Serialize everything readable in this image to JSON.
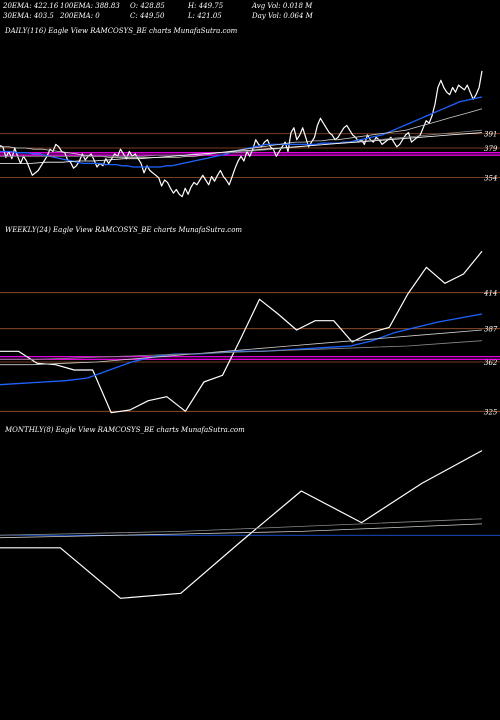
{
  "header": {
    "row1": [
      {
        "label": "20EMA: 422.16"
      },
      {
        "label": "100EMA: 388.83"
      },
      {
        "label": "O: 428.85"
      },
      {
        "label": "H: 449.75"
      },
      {
        "label": "Avg Vol: 0.018  M"
      }
    ],
    "row2": [
      {
        "label": "30EMA: 403.5"
      },
      {
        "label": "200EMA: 0"
      },
      {
        "label": "C: 449.50"
      },
      {
        "label": "L: 421.05"
      },
      {
        "label": "Day Vol: 0.064  M"
      }
    ]
  },
  "chart_data": [
    {
      "type": "line",
      "title": "DAILY(116) Eagle   View  RAMCOSYS_BE charts MunafaSutra.com",
      "ylim": [
        320,
        470
      ],
      "hlines": [
        {
          "value": 391,
          "label": "391",
          "color": "#a0522d"
        },
        {
          "value": 379,
          "label": "379",
          "color": "#a0522d"
        },
        {
          "value": 354,
          "label": "354",
          "color": "#a0522d"
        },
        {
          "value": 375,
          "label": "",
          "color": "#ff00ff"
        },
        {
          "value": 373,
          "label": "",
          "color": "#ff00ff"
        }
      ],
      "series": [
        {
          "color": "#ffffff",
          "width": 1.2,
          "values": [
            381,
            380,
            371,
            376,
            370,
            379,
            372,
            366,
            372,
            368,
            362,
            356,
            358,
            360,
            364,
            368,
            372,
            378,
            376,
            382,
            380,
            376,
            375,
            369,
            367,
            362,
            364,
            368,
            374,
            369,
            372,
            374,
            369,
            363,
            366,
            364,
            370,
            366,
            370,
            374,
            372,
            378,
            374,
            370,
            376,
            372,
            374,
            370,
            366,
            358,
            364,
            360,
            358,
            356,
            354,
            347,
            352,
            350,
            345,
            341,
            344,
            340,
            338,
            345,
            340,
            346,
            350,
            348,
            352,
            356,
            352,
            348,
            355,
            351,
            356,
            360,
            355,
            352,
            348,
            355,
            362,
            368,
            372,
            368,
            376,
            372,
            378,
            386,
            382,
            380,
            384,
            386,
            380,
            378,
            372,
            376,
            380,
            384,
            376,
            392,
            396,
            386,
            390,
            396,
            388,
            380,
            384,
            388,
            398,
            404,
            400,
            396,
            392,
            390,
            386,
            388,
            392,
            396,
            398,
            394,
            390,
            388,
            384,
            386,
            382,
            390,
            386,
            384,
            388,
            386,
            382,
            384,
            386,
            388,
            384,
            380,
            382,
            386,
            390,
            392,
            384,
            386,
            388,
            390,
            396,
            402,
            400,
            406,
            416,
            430,
            436,
            430,
            426,
            424,
            430,
            426,
            432,
            430,
            428,
            432,
            426,
            420,
            424,
            430,
            444
          ]
        },
        {
          "color": "#1e63ff",
          "width": 1.3,
          "values": [
            376,
            376,
            376,
            375,
            375,
            375,
            374,
            374,
            373,
            372,
            371,
            370,
            369,
            368,
            367,
            366,
            366,
            366,
            366,
            365,
            365,
            365,
            364,
            364,
            363,
            363,
            363,
            363,
            363,
            363,
            364,
            364,
            365,
            366,
            367,
            368,
            369,
            370,
            371,
            372,
            373,
            374,
            376,
            377,
            378,
            379,
            380,
            381,
            382,
            382,
            382,
            382,
            382,
            382,
            382,
            382,
            382,
            382,
            383,
            383,
            383,
            383,
            384,
            384,
            385,
            386,
            387,
            388,
            389,
            390,
            392,
            394,
            396,
            398,
            400,
            402,
            404,
            406,
            408,
            410,
            412,
            414,
            416,
            418,
            419,
            420,
            421,
            422
          ]
        },
        {
          "color": "#cccccc",
          "width": 0.8,
          "values": [
            380,
            380,
            379,
            379,
            378,
            378,
            377,
            376,
            375,
            374,
            373,
            372,
            372,
            371,
            371,
            371,
            371,
            371,
            371,
            371,
            371,
            371,
            372,
            372,
            373,
            374,
            375,
            376,
            377,
            378,
            379,
            380,
            381,
            382,
            383,
            384,
            384,
            385,
            385,
            386,
            386,
            387,
            388,
            389,
            390,
            391,
            392,
            393,
            394,
            396,
            398,
            400,
            402,
            404,
            406,
            408,
            410,
            412
          ]
        },
        {
          "color": "#888888",
          "width": 0.8,
          "values": [
            372,
            372,
            372,
            372,
            372,
            372,
            372,
            372,
            372,
            372,
            372,
            372,
            373,
            373,
            373,
            374,
            374,
            375,
            375,
            376,
            377,
            378,
            379,
            380,
            381,
            382,
            383,
            384,
            385,
            386,
            387,
            388,
            389,
            390,
            391,
            392,
            393,
            394
          ]
        },
        {
          "color": "#ffffff",
          "width": 0.8,
          "values": [
            366,
            366,
            366,
            367,
            367,
            368,
            368,
            369,
            370,
            370,
            371,
            372,
            373,
            374,
            375,
            376,
            377,
            378,
            379,
            380,
            381,
            382,
            383,
            384,
            385,
            386,
            387,
            388,
            389,
            390,
            391,
            392
          ]
        }
      ]
    },
    {
      "type": "line",
      "title": "WEEKLY(24) Eagle   View  RAMCOSYS_BE charts MunafaSutra.com",
      "ylim": [
        320,
        455
      ],
      "hlines": [
        {
          "value": 414,
          "label": "414",
          "color": "#a0522d"
        },
        {
          "value": 387,
          "label": "387",
          "color": "#a0522d"
        },
        {
          "value": 362,
          "label": "362",
          "color": "#a0522d"
        },
        {
          "value": 325,
          "label": "325",
          "color": "#a0522d"
        },
        {
          "value": 366,
          "label": "",
          "color": "#ff00ff"
        },
        {
          "value": 364,
          "label": "",
          "color": "#ff00ff"
        }
      ],
      "series": [
        {
          "color": "#ffffff",
          "width": 1.2,
          "values": [
            370,
            370,
            361,
            360,
            356,
            356,
            324,
            326,
            333,
            336,
            325,
            347,
            352,
            380,
            409,
            398,
            386,
            393,
            393,
            377,
            384,
            388,
            413,
            433,
            421,
            428,
            445
          ]
        },
        {
          "color": "#1e63ff",
          "width": 1.3,
          "values": [
            345,
            346,
            347,
            348,
            350,
            356,
            362,
            366,
            368,
            368,
            369,
            370,
            370,
            371,
            372,
            373,
            374,
            378,
            384,
            388,
            392,
            395,
            398
          ]
        },
        {
          "color": "#cccccc",
          "width": 0.8,
          "values": [
            360,
            360,
            361,
            362,
            364,
            366,
            368,
            370,
            372,
            374,
            376,
            378,
            380,
            382,
            384,
            386
          ]
        },
        {
          "color": "#888888",
          "width": 0.8,
          "values": [
            364,
            364,
            365,
            366,
            367,
            368,
            369,
            370,
            371,
            372,
            373,
            374,
            376,
            378
          ]
        }
      ]
    },
    {
      "type": "line",
      "title": "MONTHLY(8) Eagle   View  RAMCOSYS_BE charts MunafaSutra.com",
      "ylim": [
        300,
        460
      ],
      "hlines": [
        {
          "value": 383,
          "label": "",
          "color": "#1e63ff"
        }
      ],
      "series": [
        {
          "color": "#ffffff",
          "width": 1.2,
          "values": [
            373,
            373,
            333,
            337,
            378,
            418,
            393,
            424,
            450
          ]
        },
        {
          "color": "#888888",
          "width": 0.8,
          "values": [
            383,
            384,
            385,
            386,
            388,
            390,
            392,
            394,
            396
          ]
        },
        {
          "color": "#cccccc",
          "width": 0.8,
          "values": [
            381,
            382,
            383,
            384,
            385,
            386,
            388,
            390,
            392
          ]
        }
      ]
    }
  ]
}
